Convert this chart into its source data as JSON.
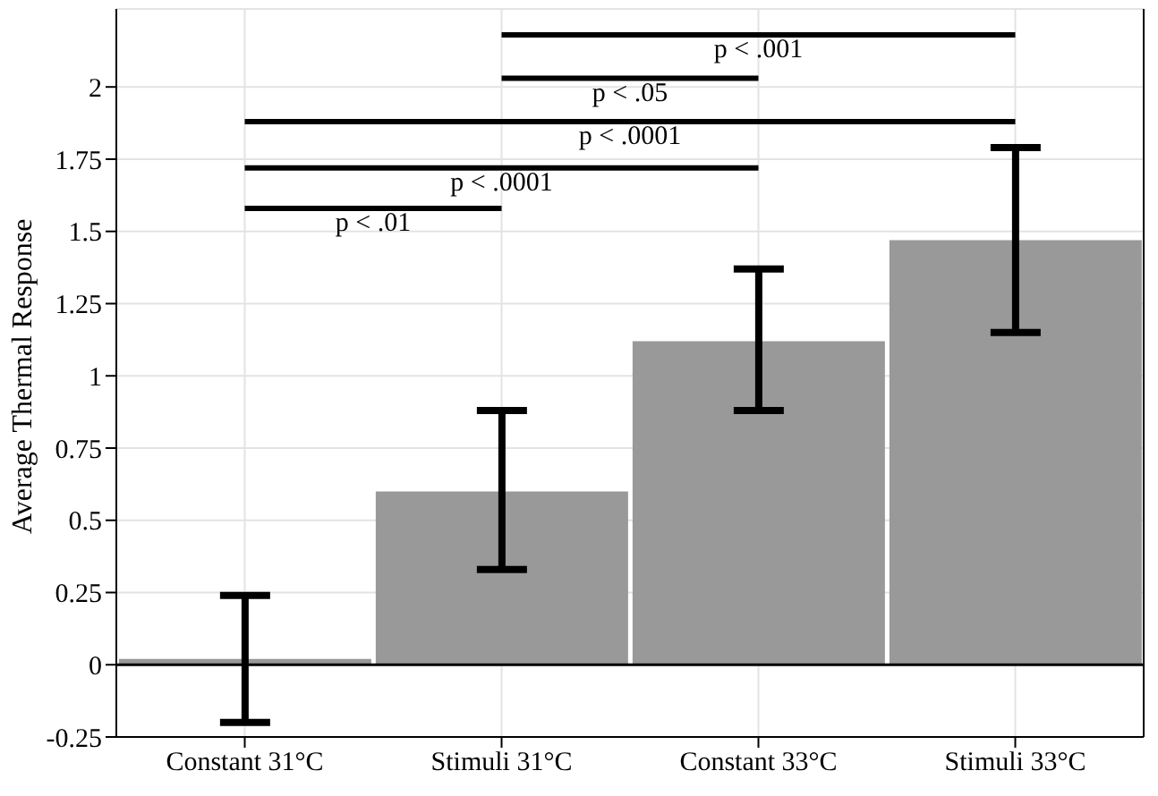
{
  "chart_data": {
    "type": "bar",
    "ylabel": "Average Thermal Response",
    "categories": [
      "Constant 31°C",
      "Stimuli 31°C",
      "Constant 33°C",
      "Stimuli 33°C"
    ],
    "values": [
      0.02,
      0.6,
      1.12,
      1.47
    ],
    "color": "#999999",
    "errors": [
      [
        -0.2,
        0.24
      ],
      [
        0.33,
        0.88
      ],
      [
        0.88,
        1.37
      ],
      [
        1.15,
        1.79
      ]
    ],
    "ylim": [
      -0.25,
      2.27
    ],
    "yticks": [
      -0.25,
      0,
      0.25,
      0.5,
      0.75,
      1,
      1.25,
      1.5,
      1.75,
      2
    ],
    "ref_lines": [
      {
        "axis": "y",
        "value": 0,
        "color": "#000000"
      }
    ],
    "annotations": [
      "p < .001",
      "p < .05",
      "p < .0001",
      "p < .0001",
      "p < .01"
    ],
    "grid": true
  }
}
